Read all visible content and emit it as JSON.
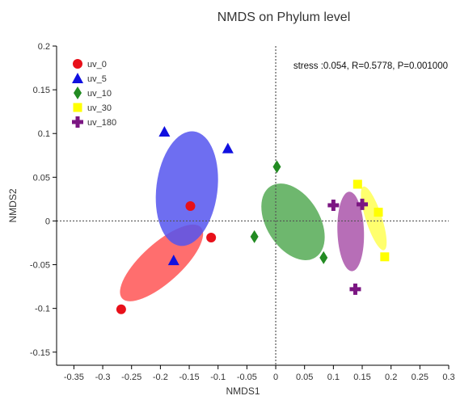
{
  "chart_data": {
    "type": "scatter",
    "title": "NMDS on Phylum level",
    "xlabel": "NMDS1",
    "ylabel": "NMDS2",
    "xlim": [
      -0.38,
      0.3
    ],
    "ylim": [
      -0.165,
      0.2
    ],
    "x_ticks": [
      -0.35,
      -0.3,
      -0.25,
      -0.2,
      -0.15,
      -0.1,
      -0.05,
      0,
      0.05,
      0.1,
      0.15,
      0.2,
      0.25,
      0.3
    ],
    "x_tick_labels": [
      "-0.35",
      "-0.3",
      "-0.25",
      "-0.2",
      "-0.15",
      "-0.1",
      "-0.05",
      "0",
      "0.05",
      "0.1",
      "0.15",
      "0.2",
      "0.25",
      "0.3"
    ],
    "y_ticks": [
      -0.15,
      -0.1,
      -0.05,
      0,
      0.05,
      0.1,
      0.15,
      0.2
    ],
    "y_tick_labels": [
      "-0.15",
      "-0.1",
      "-0.05",
      "0",
      "0.05",
      "0.1",
      "0.15",
      "0.2"
    ],
    "annotation": "stress :0.054, R=0.5778, P=0.001000",
    "legend_position": "top-left",
    "reference_lines": {
      "x": 0,
      "y": 0,
      "style": "dotted"
    },
    "series": [
      {
        "name": "uv_0",
        "marker": "circle",
        "color": "#e8101a",
        "points": [
          [
            -0.148,
            0.017
          ],
          [
            -0.112,
            -0.019
          ],
          [
            -0.268,
            -0.101
          ]
        ],
        "ellipse": {
          "center": [
            -0.198,
            -0.048
          ],
          "semi_axes": [
            0.092,
            0.034
          ],
          "angle_deg": 42,
          "fill": "#ff5555",
          "opacity": 0.85
        }
      },
      {
        "name": "uv_5",
        "marker": "triangle",
        "color": "#1010e0",
        "points": [
          [
            -0.193,
            0.102
          ],
          [
            -0.083,
            0.083
          ],
          [
            -0.177,
            -0.045
          ]
        ],
        "ellipse": {
          "center": [
            -0.154,
            0.037
          ],
          "semi_axes": [
            0.1,
            0.053
          ],
          "angle_deg": 83,
          "fill": "#5555ee",
          "opacity": 0.85
        }
      },
      {
        "name": "uv_10",
        "marker": "diamond",
        "color": "#228b22",
        "points": [
          [
            0.002,
            0.062
          ],
          [
            -0.037,
            -0.018
          ],
          [
            0.083,
            -0.042
          ]
        ],
        "ellipse": {
          "center": [
            0.03,
            -0.001
          ],
          "semi_axes": [
            0.073,
            0.046
          ],
          "angle_deg": -58,
          "fill": "#55aa55",
          "opacity": 0.85
        }
      },
      {
        "name": "uv_30",
        "marker": "square",
        "color": "#ffff00",
        "points": [
          [
            0.142,
            0.042
          ],
          [
            0.178,
            0.01
          ],
          [
            0.189,
            -0.041
          ]
        ],
        "ellipse": {
          "center": [
            0.17,
            0.003
          ],
          "semi_axes": [
            0.058,
            0.014
          ],
          "angle_deg": -72,
          "fill": "#ffff55",
          "opacity": 0.85
        }
      },
      {
        "name": "uv_180",
        "marker": "cross",
        "color": "#7b1682",
        "points": [
          [
            0.1,
            0.018
          ],
          [
            0.15,
            0.019
          ],
          [
            0.138,
            -0.078
          ]
        ],
        "ellipse": {
          "center": [
            0.13,
            -0.012
          ],
          "semi_axes": [
            0.069,
            0.023
          ],
          "angle_deg": -88,
          "fill": "#aa55aa",
          "opacity": 0.85
        }
      }
    ]
  }
}
